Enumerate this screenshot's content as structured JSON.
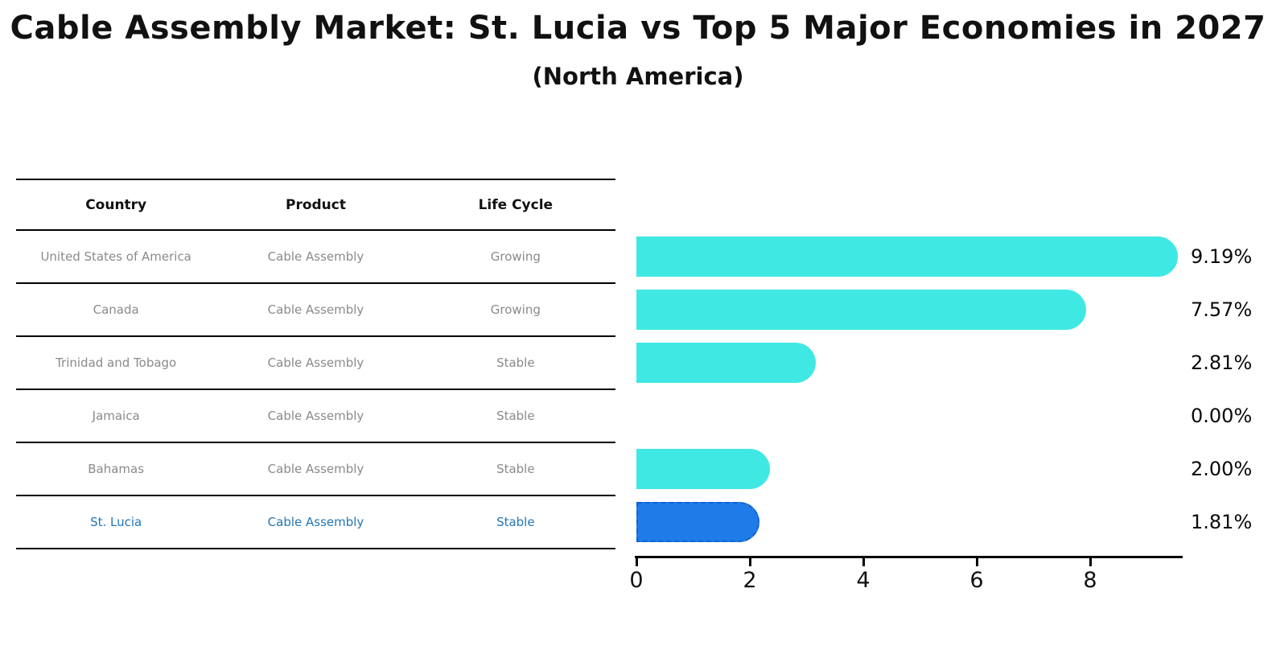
{
  "title": "Cable Assembly Market: St. Lucia vs Top 5 Major Economies in 2027",
  "subtitle": "(North America)",
  "table": {
    "headers": [
      "Country",
      "Product",
      "Life Cycle"
    ],
    "rows": [
      {
        "country": "United States of America",
        "product": "Cable Assembly",
        "life_cycle": "Growing",
        "highlight": false
      },
      {
        "country": "Canada",
        "product": "Cable Assembly",
        "life_cycle": "Growing",
        "highlight": false
      },
      {
        "country": "Trinidad and Tobago",
        "product": "Cable Assembly",
        "life_cycle": "Stable",
        "highlight": false
      },
      {
        "country": "Jamaica",
        "product": "Cable Assembly",
        "life_cycle": "Stable",
        "highlight": false
      },
      {
        "country": "Bahamas",
        "product": "Cable Assembly",
        "life_cycle": "Stable",
        "highlight": false
      },
      {
        "country": "St. Lucia",
        "product": "Cable Assembly",
        "life_cycle": "Stable",
        "highlight": true
      }
    ]
  },
  "chart_data": {
    "type": "bar",
    "orientation": "horizontal",
    "title": "Cable Assembly Market: St. Lucia vs Top 5 Major Economies in 2027 (North America)",
    "categories": [
      "United States of America",
      "Canada",
      "Trinidad and Tobago",
      "Jamaica",
      "Bahamas",
      "St. Lucia"
    ],
    "values": [
      9.19,
      7.57,
      2.81,
      0.0,
      2.0,
      1.81
    ],
    "value_labels": [
      "9.19%",
      "7.57%",
      "2.81%",
      "0.00%",
      "2.00%",
      "1.81%"
    ],
    "unit": "%",
    "xlim": [
      0,
      9.6
    ],
    "x_ticks": [
      0,
      2,
      4,
      6,
      8
    ],
    "x_tick_labels": [
      "0",
      "2",
      "4",
      "6",
      "8"
    ],
    "grid": false,
    "legend": false,
    "highlight_index": 5,
    "bar_color": "#40e8e4",
    "highlight_color": "#1e7be8",
    "highlight_border_color": "#1361d6"
  },
  "colors": {
    "background": "#ffffff",
    "text_primary": "#111111",
    "text_muted": "#8a8a8a",
    "text_highlight": "#2277b8",
    "axis": "#000000"
  }
}
